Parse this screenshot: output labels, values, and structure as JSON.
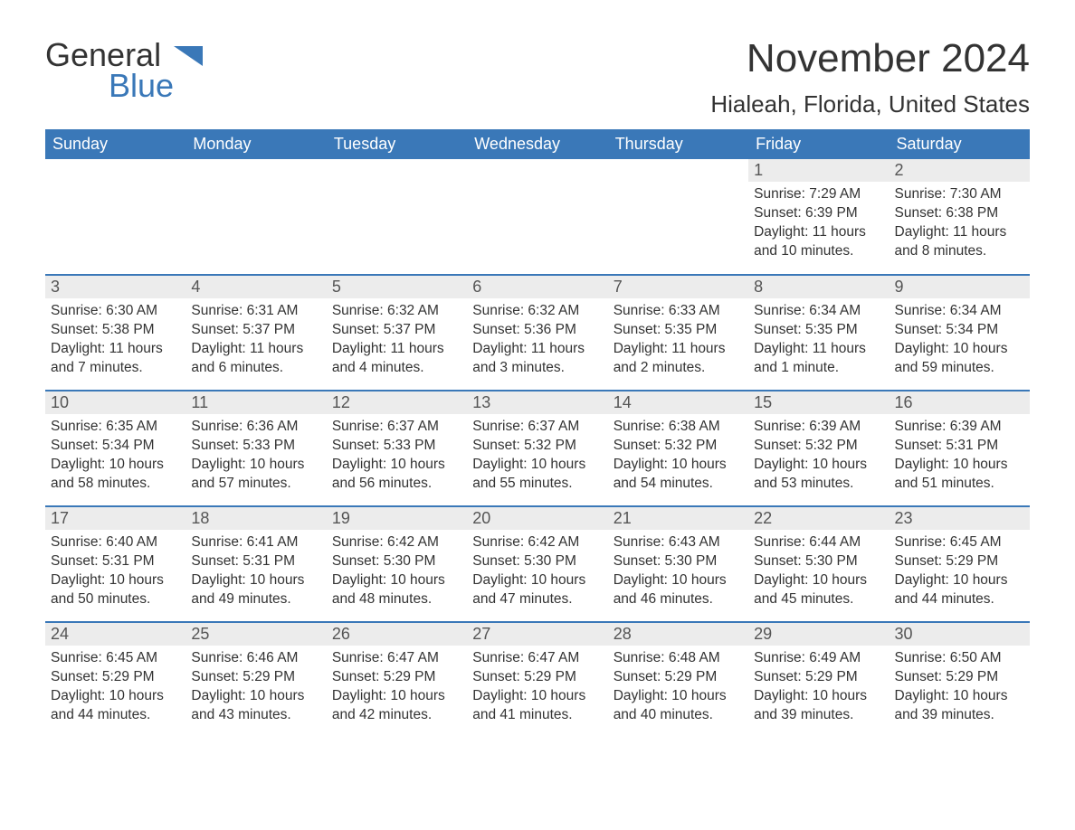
{
  "logo": {
    "text1": "General",
    "text2": "Blue"
  },
  "title": "November 2024",
  "location": "Hialeah, Florida, United States",
  "colors": {
    "header_bg": "#3a78b8",
    "header_text": "#ffffff",
    "daynum_bg": "#ececec",
    "border": "#3a78b8",
    "text": "#333333",
    "page_bg": "#ffffff"
  },
  "calendar": {
    "type": "table",
    "columns": [
      "Sunday",
      "Monday",
      "Tuesday",
      "Wednesday",
      "Thursday",
      "Friday",
      "Saturday"
    ],
    "weeks": [
      [
        null,
        null,
        null,
        null,
        null,
        {
          "n": "1",
          "sr": "Sunrise: 7:29 AM",
          "ss": "Sunset: 6:39 PM",
          "dl": "Daylight: 11 hours and 10 minutes."
        },
        {
          "n": "2",
          "sr": "Sunrise: 7:30 AM",
          "ss": "Sunset: 6:38 PM",
          "dl": "Daylight: 11 hours and 8 minutes."
        }
      ],
      [
        {
          "n": "3",
          "sr": "Sunrise: 6:30 AM",
          "ss": "Sunset: 5:38 PM",
          "dl": "Daylight: 11 hours and 7 minutes."
        },
        {
          "n": "4",
          "sr": "Sunrise: 6:31 AM",
          "ss": "Sunset: 5:37 PM",
          "dl": "Daylight: 11 hours and 6 minutes."
        },
        {
          "n": "5",
          "sr": "Sunrise: 6:32 AM",
          "ss": "Sunset: 5:37 PM",
          "dl": "Daylight: 11 hours and 4 minutes."
        },
        {
          "n": "6",
          "sr": "Sunrise: 6:32 AM",
          "ss": "Sunset: 5:36 PM",
          "dl": "Daylight: 11 hours and 3 minutes."
        },
        {
          "n": "7",
          "sr": "Sunrise: 6:33 AM",
          "ss": "Sunset: 5:35 PM",
          "dl": "Daylight: 11 hours and 2 minutes."
        },
        {
          "n": "8",
          "sr": "Sunrise: 6:34 AM",
          "ss": "Sunset: 5:35 PM",
          "dl": "Daylight: 11 hours and 1 minute."
        },
        {
          "n": "9",
          "sr": "Sunrise: 6:34 AM",
          "ss": "Sunset: 5:34 PM",
          "dl": "Daylight: 10 hours and 59 minutes."
        }
      ],
      [
        {
          "n": "10",
          "sr": "Sunrise: 6:35 AM",
          "ss": "Sunset: 5:34 PM",
          "dl": "Daylight: 10 hours and 58 minutes."
        },
        {
          "n": "11",
          "sr": "Sunrise: 6:36 AM",
          "ss": "Sunset: 5:33 PM",
          "dl": "Daylight: 10 hours and 57 minutes."
        },
        {
          "n": "12",
          "sr": "Sunrise: 6:37 AM",
          "ss": "Sunset: 5:33 PM",
          "dl": "Daylight: 10 hours and 56 minutes."
        },
        {
          "n": "13",
          "sr": "Sunrise: 6:37 AM",
          "ss": "Sunset: 5:32 PM",
          "dl": "Daylight: 10 hours and 55 minutes."
        },
        {
          "n": "14",
          "sr": "Sunrise: 6:38 AM",
          "ss": "Sunset: 5:32 PM",
          "dl": "Daylight: 10 hours and 54 minutes."
        },
        {
          "n": "15",
          "sr": "Sunrise: 6:39 AM",
          "ss": "Sunset: 5:32 PM",
          "dl": "Daylight: 10 hours and 53 minutes."
        },
        {
          "n": "16",
          "sr": "Sunrise: 6:39 AM",
          "ss": "Sunset: 5:31 PM",
          "dl": "Daylight: 10 hours and 51 minutes."
        }
      ],
      [
        {
          "n": "17",
          "sr": "Sunrise: 6:40 AM",
          "ss": "Sunset: 5:31 PM",
          "dl": "Daylight: 10 hours and 50 minutes."
        },
        {
          "n": "18",
          "sr": "Sunrise: 6:41 AM",
          "ss": "Sunset: 5:31 PM",
          "dl": "Daylight: 10 hours and 49 minutes."
        },
        {
          "n": "19",
          "sr": "Sunrise: 6:42 AM",
          "ss": "Sunset: 5:30 PM",
          "dl": "Daylight: 10 hours and 48 minutes."
        },
        {
          "n": "20",
          "sr": "Sunrise: 6:42 AM",
          "ss": "Sunset: 5:30 PM",
          "dl": "Daylight: 10 hours and 47 minutes."
        },
        {
          "n": "21",
          "sr": "Sunrise: 6:43 AM",
          "ss": "Sunset: 5:30 PM",
          "dl": "Daylight: 10 hours and 46 minutes."
        },
        {
          "n": "22",
          "sr": "Sunrise: 6:44 AM",
          "ss": "Sunset: 5:30 PM",
          "dl": "Daylight: 10 hours and 45 minutes."
        },
        {
          "n": "23",
          "sr": "Sunrise: 6:45 AM",
          "ss": "Sunset: 5:29 PM",
          "dl": "Daylight: 10 hours and 44 minutes."
        }
      ],
      [
        {
          "n": "24",
          "sr": "Sunrise: 6:45 AM",
          "ss": "Sunset: 5:29 PM",
          "dl": "Daylight: 10 hours and 44 minutes."
        },
        {
          "n": "25",
          "sr": "Sunrise: 6:46 AM",
          "ss": "Sunset: 5:29 PM",
          "dl": "Daylight: 10 hours and 43 minutes."
        },
        {
          "n": "26",
          "sr": "Sunrise: 6:47 AM",
          "ss": "Sunset: 5:29 PM",
          "dl": "Daylight: 10 hours and 42 minutes."
        },
        {
          "n": "27",
          "sr": "Sunrise: 6:47 AM",
          "ss": "Sunset: 5:29 PM",
          "dl": "Daylight: 10 hours and 41 minutes."
        },
        {
          "n": "28",
          "sr": "Sunrise: 6:48 AM",
          "ss": "Sunset: 5:29 PM",
          "dl": "Daylight: 10 hours and 40 minutes."
        },
        {
          "n": "29",
          "sr": "Sunrise: 6:49 AM",
          "ss": "Sunset: 5:29 PM",
          "dl": "Daylight: 10 hours and 39 minutes."
        },
        {
          "n": "30",
          "sr": "Sunrise: 6:50 AM",
          "ss": "Sunset: 5:29 PM",
          "dl": "Daylight: 10 hours and 39 minutes."
        }
      ]
    ]
  }
}
